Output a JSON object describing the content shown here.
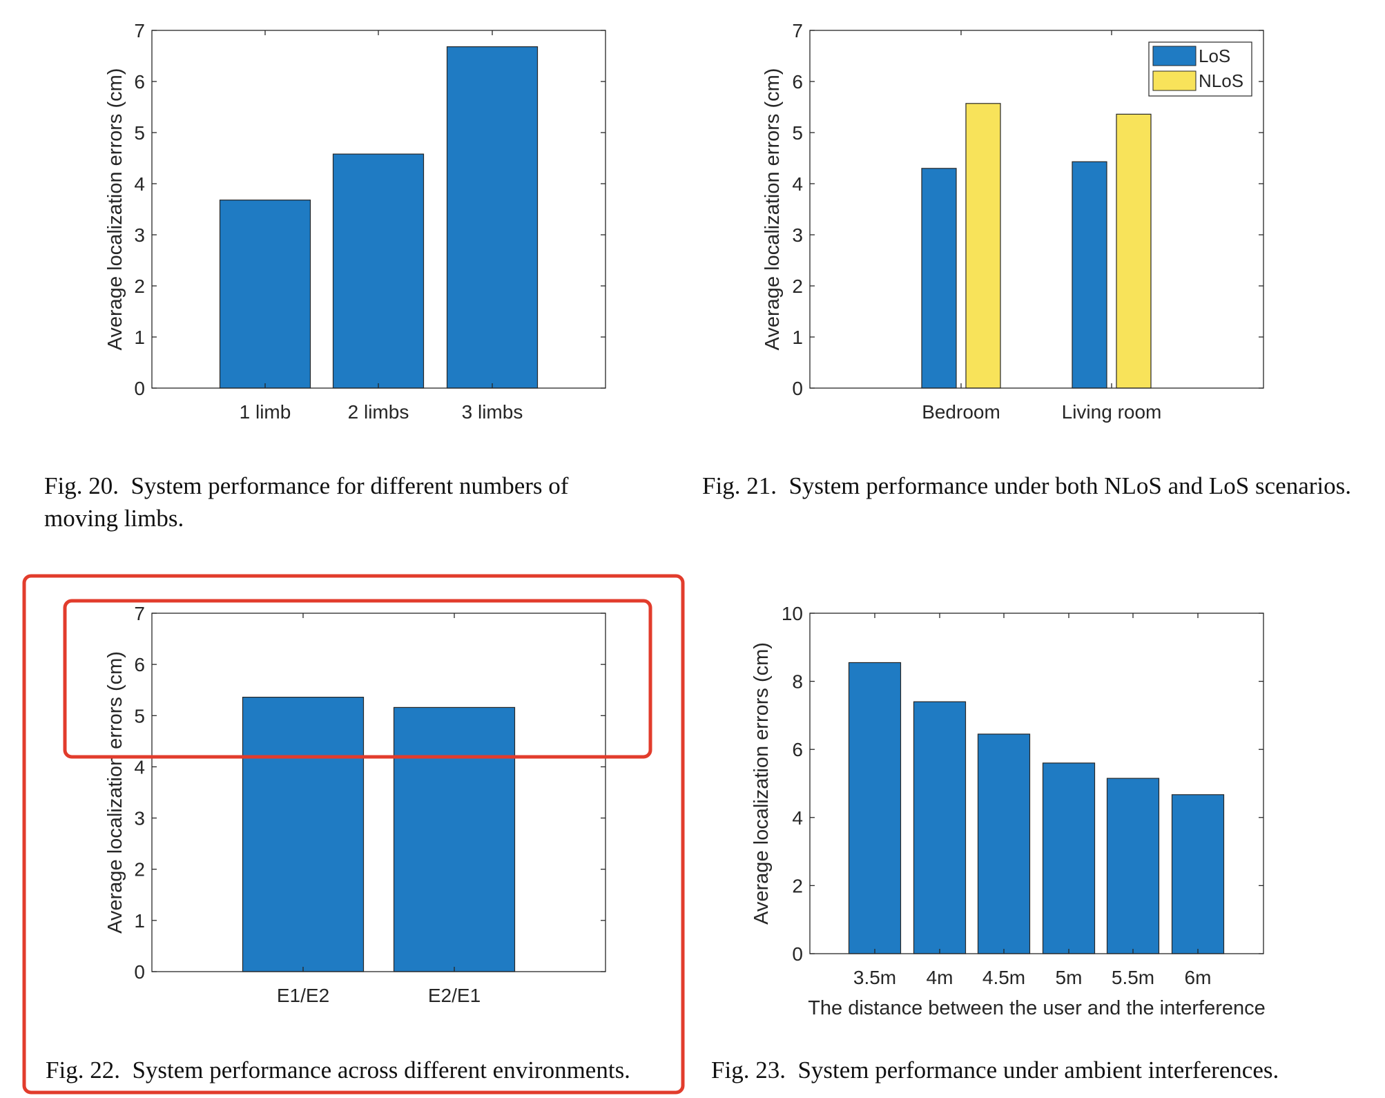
{
  "colors": {
    "los": "#1f7bc3",
    "nlos": "#f8e35a",
    "highlight": "#e23c2c",
    "axis": "#262626"
  },
  "highlight_icons": [
    "highlight-box-outer",
    "highlight-box-inner"
  ],
  "chart_data": [
    {
      "id": "fig20",
      "type": "bar",
      "categories": [
        "1 limb",
        "2 limbs",
        "3 limbs"
      ],
      "values": [
        3.68,
        4.58,
        6.68
      ],
      "ylabel": "Average localization errors (cm)",
      "xlabel": "",
      "ylim": [
        0,
        7
      ],
      "yticks": [
        "0",
        "1",
        "2",
        "3",
        "4",
        "5",
        "6",
        "7"
      ],
      "grid": false,
      "caption_num": "Fig. 20.",
      "caption_text": "System performance for different numbers of moving limbs."
    },
    {
      "id": "fig21",
      "type": "bar",
      "categories": [
        "Bedroom",
        "Living room"
      ],
      "series": [
        {
          "name": "LoS",
          "values": [
            4.3,
            4.43
          ]
        },
        {
          "name": "NLoS",
          "values": [
            5.57,
            5.36
          ]
        }
      ],
      "ylabel": "Average localization errors (cm)",
      "xlabel": "",
      "ylim": [
        0,
        7
      ],
      "yticks": [
        "0",
        "1",
        "2",
        "3",
        "4",
        "5",
        "6",
        "7"
      ],
      "legend": "top-right",
      "grid": false,
      "caption_num": "Fig. 21.",
      "caption_text": "System performance under both NLoS and LoS scenarios."
    },
    {
      "id": "fig22",
      "type": "bar",
      "categories": [
        "E1/E2",
        "E2/E1"
      ],
      "values": [
        5.36,
        5.16
      ],
      "ylabel": "Average localization errors (cm)",
      "xlabel": "",
      "ylim": [
        0,
        7
      ],
      "yticks": [
        "0",
        "1",
        "2",
        "3",
        "4",
        "5",
        "6",
        "7"
      ],
      "grid": false,
      "caption_num": "Fig. 22.",
      "caption_text": "System performance across different environments."
    },
    {
      "id": "fig23",
      "type": "bar",
      "categories": [
        "3.5m",
        "4m",
        "4.5m",
        "5m",
        "5.5m",
        "6m"
      ],
      "values": [
        8.55,
        7.4,
        6.45,
        5.6,
        5.15,
        4.67
      ],
      "ylabel": "Average localization errors (cm)",
      "xlabel": "The distance between the user and the interference",
      "ylim": [
        0,
        10
      ],
      "yticks": [
        "0",
        "2",
        "4",
        "6",
        "8",
        "10"
      ],
      "grid": false,
      "caption_num": "Fig. 23.",
      "caption_text": "System performance under ambient interferences."
    }
  ]
}
